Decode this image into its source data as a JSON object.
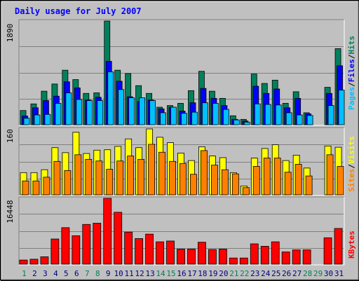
{
  "title": "Daily usage for July 2007",
  "colors": {
    "background": "#c0c0c0",
    "plot_bg": "#c0c0c0",
    "title": "#0000ff",
    "hits": "#00805c",
    "files": "#0000ff",
    "pages": "#00c0ff",
    "visits": "#ffff00",
    "sites": "#ff8000",
    "kbytes": "#ff0000",
    "weekend_label": "#00805c",
    "weekday_label": "#000080"
  },
  "right_labels": {
    "top": {
      "pages": "Pages",
      "sep1": "/",
      "files": "Files",
      "sep2": "/",
      "hits": "Hits"
    },
    "mid": {
      "sites": "Sites",
      "sep": "/",
      "visits": "Visits"
    },
    "bot": {
      "kbytes": "KBytes"
    }
  },
  "chart_data": [
    {
      "type": "bar",
      "panel": "hits-files-pages",
      "y_max_label": "1890",
      "ylim": [
        0,
        1890
      ],
      "categories": [
        "1",
        "2",
        "3",
        "4",
        "5",
        "6",
        "7",
        "8",
        "9",
        "10",
        "11",
        "12",
        "13",
        "14",
        "15",
        "16",
        "17",
        "18",
        "19",
        "20",
        "21",
        "22",
        "23",
        "24",
        "25",
        "26",
        "27",
        "28",
        "29",
        "30",
        "31"
      ],
      "series": [
        {
          "name": "Hits",
          "values": [
            270,
            390,
            620,
            750,
            1000,
            830,
            580,
            590,
            1890,
            1000,
            940,
            720,
            580,
            330,
            360,
            400,
            630,
            980,
            620,
            490,
            175,
            110,
            930,
            760,
            820,
            400,
            610,
            230,
            0,
            690,
            1390
          ]
        },
        {
          "name": "Files",
          "values": [
            170,
            320,
            450,
            530,
            790,
            680,
            460,
            510,
            1160,
            800,
            520,
            430,
            460,
            300,
            330,
            260,
            410,
            670,
            490,
            360,
            110,
            80,
            710,
            580,
            660,
            320,
            490,
            210,
            0,
            580,
            1080
          ]
        },
        {
          "name": "Pages",
          "values": [
            130,
            190,
            200,
            400,
            590,
            470,
            450,
            450,
            970,
            650,
            500,
            500,
            450,
            230,
            330,
            220,
            240,
            410,
            400,
            290,
            100,
            60,
            390,
            380,
            370,
            230,
            190,
            180,
            0,
            360,
            640
          ]
        }
      ],
      "weekend_days": [
        "1",
        "7",
        "8",
        "14",
        "15",
        "21",
        "22",
        "28",
        "29"
      ]
    },
    {
      "type": "bar",
      "panel": "visits-sites",
      "y_max_label": "160",
      "ylim": [
        0,
        160
      ],
      "categories": [
        "1",
        "2",
        "3",
        "4",
        "5",
        "6",
        "7",
        "8",
        "9",
        "10",
        "11",
        "12",
        "13",
        "14",
        "15",
        "16",
        "17",
        "18",
        "19",
        "20",
        "21",
        "22",
        "23",
        "24",
        "25",
        "26",
        "27",
        "28",
        "29",
        "30",
        "31"
      ],
      "series": [
        {
          "name": "Visits",
          "values": [
            55,
            55,
            62,
            115,
            103,
            152,
            101,
            109,
            110,
            118,
            136,
            115,
            160,
            140,
            127,
            102,
            84,
            117,
            95,
            91,
            55,
            23,
            90,
            113,
            122,
            84,
            97,
            66,
            0,
            119,
            116
          ]
        },
        {
          "name": "Sites",
          "values": [
            35,
            35,
            44,
            82,
            60,
            98,
            87,
            83,
            63,
            83,
            95,
            87,
            123,
            104,
            82,
            77,
            51,
            108,
            73,
            62,
            52,
            19,
            70,
            90,
            90,
            56,
            75,
            47,
            0,
            98,
            70
          ]
        }
      ]
    },
    {
      "type": "bar",
      "panel": "kbytes",
      "y_max_label": "16448",
      "ylim": [
        0,
        16448
      ],
      "categories": [
        "1",
        "2",
        "3",
        "4",
        "5",
        "6",
        "7",
        "8",
        "9",
        "10",
        "11",
        "12",
        "13",
        "14",
        "15",
        "16",
        "17",
        "18",
        "19",
        "20",
        "21",
        "22",
        "23",
        "24",
        "25",
        "26",
        "27",
        "28",
        "29",
        "30",
        "31"
      ],
      "series": [
        {
          "name": "KBytes",
          "values": [
            1200,
            1400,
            2000,
            6400,
            9200,
            7200,
            10000,
            10300,
            16448,
            13000,
            8100,
            6500,
            7600,
            5700,
            5900,
            3900,
            3900,
            5600,
            3800,
            3900,
            1700,
            1700,
            5200,
            4600,
            5700,
            3200,
            3700,
            3700,
            0,
            6700,
            9000
          ]
        }
      ]
    }
  ]
}
